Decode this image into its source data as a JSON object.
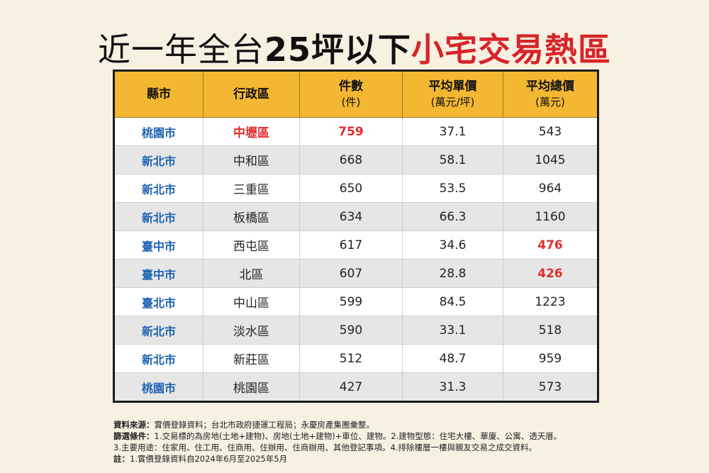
{
  "title": {
    "part1": "近一年全台",
    "part2": "25坪以下",
    "part3": "小宅交易熱區"
  },
  "table": {
    "headers": [
      {
        "label": "縣市",
        "sub": ""
      },
      {
        "label": "行政區",
        "sub": ""
      },
      {
        "label": "件數",
        "sub": "(件)"
      },
      {
        "label": "平均單價",
        "sub": "(萬元/坪)"
      },
      {
        "label": "平均總價",
        "sub": "(萬元)"
      }
    ],
    "rows": [
      {
        "city": "桃園市",
        "district": "中壢區",
        "count": "759",
        "unit_price": "37.1",
        "total_price": "543"
      },
      {
        "city": "新北市",
        "district": "中和區",
        "count": "668",
        "unit_price": "58.1",
        "total_price": "1045"
      },
      {
        "city": "新北市",
        "district": "三重區",
        "count": "650",
        "unit_price": "53.5",
        "total_price": "964"
      },
      {
        "city": "新北市",
        "district": "板橋區",
        "count": "634",
        "unit_price": "66.3",
        "total_price": "1160"
      },
      {
        "city": "臺中市",
        "district": "西屯區",
        "count": "617",
        "unit_price": "34.6",
        "total_price": "476"
      },
      {
        "city": "臺中市",
        "district": "北區",
        "count": "607",
        "unit_price": "28.8",
        "total_price": "426"
      },
      {
        "city": "臺北市",
        "district": "中山區",
        "count": "599",
        "unit_price": "84.5",
        "total_price": "1223"
      },
      {
        "city": "新北市",
        "district": "淡水區",
        "count": "590",
        "unit_price": "33.1",
        "total_price": "518"
      },
      {
        "city": "新北市",
        "district": "新莊區",
        "count": "512",
        "unit_price": "48.7",
        "total_price": "959"
      },
      {
        "city": "桃園市",
        "district": "桃園區",
        "count": "427",
        "unit_price": "31.3",
        "total_price": "573"
      }
    ]
  },
  "notes": {
    "source_label": "資料來源：",
    "source_text": "實價登錄資料；台北市政府捷運工程局；永慶房產集團彙整。",
    "filter_label": "篩選條件：",
    "filter_text": "1.交易標的為房地(土地+建物)、房地(土地+建物)+車位、建物。2.建物型態：住宅大樓、華廈、公寓、透天厝。",
    "filter_text2": "3.主要用途：住家用、住工用、住商用、住辦用、住商辦用、其他登記事項。4.排除樓層一樓與親友交易之成交資料。",
    "note_label": "註：",
    "note_text": "1.實價登錄資料自2024年6月至2025年5月"
  },
  "colors": {
    "background": "#f6f1e1",
    "header": "#f4b731",
    "city_text": "#1b62b3",
    "highlight": "#e02d2d",
    "title_accent": "#d8232a"
  }
}
